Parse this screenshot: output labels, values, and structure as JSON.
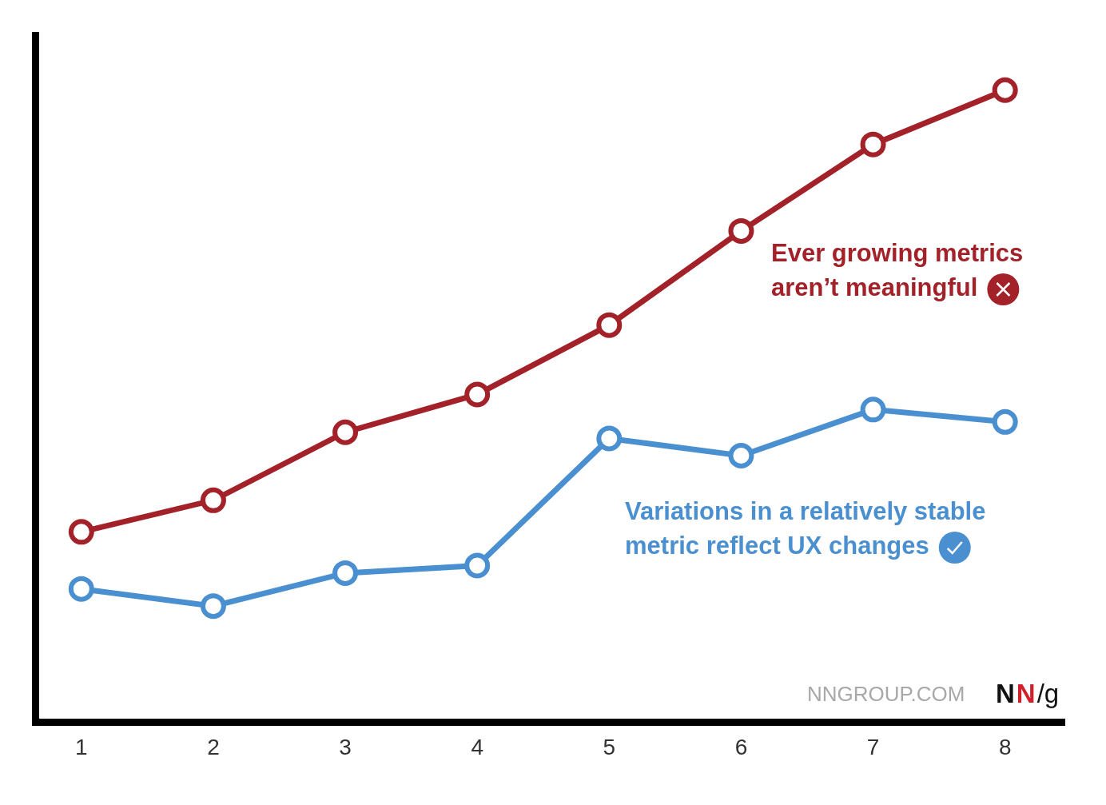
{
  "chart_data": {
    "type": "line",
    "x": [
      1,
      2,
      3,
      4,
      5,
      6,
      7,
      8
    ],
    "series": [
      {
        "color": "#a3222a",
        "values": [
          27.7,
          32.3,
          42.2,
          47.7,
          57.8,
          71.5,
          84.1,
          92.0
        ]
      },
      {
        "color": "#4a90d0",
        "values": [
          19.4,
          16.9,
          21.7,
          22.8,
          41.3,
          38.8,
          45.5,
          43.7
        ]
      }
    ],
    "xlim": [
      0.65,
      8.45
    ],
    "xticks": [
      1,
      2,
      3,
      4,
      5,
      6,
      7,
      8
    ],
    "ylim": [
      0,
      100
    ],
    "grid": false,
    "tick_labels": "x",
    "marker": "circle",
    "annotations": [
      {
        "text": [
          "Ever growing metrics",
          "aren’t meaningful"
        ],
        "color": "#a3222a"
      },
      {
        "text": [
          "Variations in a relatively stable",
          "metric reflect UX changes"
        ],
        "color": "#4a90d0"
      }
    ],
    "source": "NNGROUP.COM",
    "logo": "NN/g"
  }
}
